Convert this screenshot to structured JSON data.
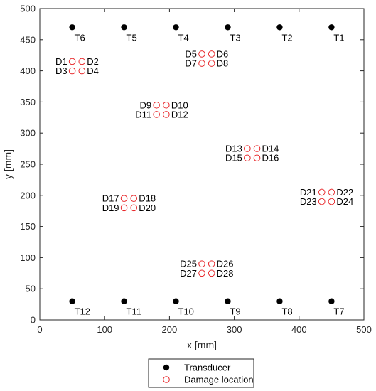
{
  "chart_data": {
    "type": "scatter",
    "xlabel": "x [mm]",
    "ylabel": "y [mm]",
    "xlim": [
      0,
      500
    ],
    "ylim": [
      0,
      500
    ],
    "xticks": [
      0,
      100,
      200,
      300,
      400,
      500
    ],
    "yticks": [
      0,
      50,
      100,
      150,
      200,
      250,
      300,
      350,
      400,
      450,
      500
    ],
    "grid": false,
    "legend_position": "bottom-center-outside",
    "series": [
      {
        "name": "Transducer",
        "marker": "filled-circle",
        "color": "#000000",
        "points": [
          {
            "label": "T1",
            "x": 450,
            "y": 470
          },
          {
            "label": "T2",
            "x": 370,
            "y": 470
          },
          {
            "label": "T3",
            "x": 290,
            "y": 470
          },
          {
            "label": "T4",
            "x": 210,
            "y": 470
          },
          {
            "label": "T5",
            "x": 130,
            "y": 470
          },
          {
            "label": "T6",
            "x": 50,
            "y": 470
          },
          {
            "label": "T7",
            "x": 450,
            "y": 30
          },
          {
            "label": "T8",
            "x": 370,
            "y": 30
          },
          {
            "label": "T9",
            "x": 290,
            "y": 30
          },
          {
            "label": "T10",
            "x": 210,
            "y": 30
          },
          {
            "label": "T11",
            "x": 130,
            "y": 30
          },
          {
            "label": "T12",
            "x": 50,
            "y": 30
          }
        ]
      },
      {
        "name": "Damage location",
        "marker": "open-circle",
        "color": "#e8282b",
        "points": [
          {
            "label": "D1",
            "x": 50,
            "y": 415
          },
          {
            "label": "D2",
            "x": 65,
            "y": 415
          },
          {
            "label": "D3",
            "x": 50,
            "y": 400
          },
          {
            "label": "D4",
            "x": 65,
            "y": 400
          },
          {
            "label": "D5",
            "x": 250,
            "y": 427
          },
          {
            "label": "D6",
            "x": 265,
            "y": 427
          },
          {
            "label": "D7",
            "x": 250,
            "y": 412
          },
          {
            "label": "D8",
            "x": 265,
            "y": 412
          },
          {
            "label": "D9",
            "x": 180,
            "y": 345
          },
          {
            "label": "D10",
            "x": 195,
            "y": 345
          },
          {
            "label": "D11",
            "x": 180,
            "y": 330
          },
          {
            "label": "D12",
            "x": 195,
            "y": 330
          },
          {
            "label": "D13",
            "x": 320,
            "y": 275
          },
          {
            "label": "D14",
            "x": 335,
            "y": 275
          },
          {
            "label": "D15",
            "x": 320,
            "y": 260
          },
          {
            "label": "D16",
            "x": 335,
            "y": 260
          },
          {
            "label": "D17",
            "x": 130,
            "y": 195
          },
          {
            "label": "D18",
            "x": 145,
            "y": 195
          },
          {
            "label": "D19",
            "x": 130,
            "y": 180
          },
          {
            "label": "D20",
            "x": 145,
            "y": 180
          },
          {
            "label": "D21",
            "x": 435,
            "y": 205
          },
          {
            "label": "D22",
            "x": 450,
            "y": 205
          },
          {
            "label": "D23",
            "x": 435,
            "y": 190
          },
          {
            "label": "D24",
            "x": 450,
            "y": 190
          },
          {
            "label": "D25",
            "x": 250,
            "y": 90
          },
          {
            "label": "D26",
            "x": 265,
            "y": 90
          },
          {
            "label": "D27",
            "x": 250,
            "y": 75
          },
          {
            "label": "D28",
            "x": 265,
            "y": 75
          }
        ]
      }
    ]
  }
}
